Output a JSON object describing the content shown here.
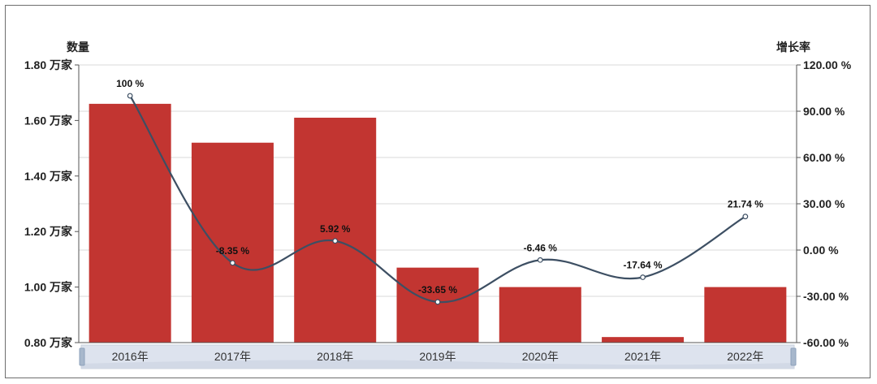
{
  "chart_data": {
    "type": "bar+line",
    "categories": [
      "2016年",
      "2017年",
      "2018年",
      "2019年",
      "2020年",
      "2021年",
      "2022年"
    ],
    "series": [
      {
        "type": "bar",
        "axis": "left",
        "values": [
          1.66,
          1.52,
          1.61,
          1.07,
          1.0,
          0.82,
          1.0
        ]
      },
      {
        "type": "line",
        "axis": "right",
        "values": [
          100,
          -8.35,
          5.92,
          -33.65,
          -6.46,
          -17.64,
          21.74
        ],
        "labels": [
          "100 %",
          "-8.35 %",
          "5.92 %",
          "-33.65 %",
          "-6.46 %",
          "-17.64 %",
          "21.74 %"
        ]
      }
    ],
    "left_axis": {
      "title": "数量",
      "ylim": [
        0.8,
        1.8
      ],
      "ticks": [
        0.8,
        1.0,
        1.2,
        1.4,
        1.6,
        1.8
      ],
      "tick_labels": [
        "0.80 万家",
        "1.00 万家",
        "1.20 万家",
        "1.40 万家",
        "1.60 万家",
        "1.80 万家"
      ]
    },
    "right_axis": {
      "title": "增长率",
      "ylim": [
        -60,
        120
      ],
      "ticks": [
        -60,
        -30,
        0,
        30,
        60,
        90,
        120
      ],
      "tick_labels": [
        "-60.00 %",
        "-30.00 %",
        "0.00 %",
        "30.00 %",
        "60.00 %",
        "90.00 %",
        "120.00 %"
      ]
    },
    "grid": true,
    "colors": {
      "bar": "#c23531",
      "line": "#3d4f63",
      "grid": "#d9d9d9",
      "axis": "#555555",
      "zoom_fill": "#dde3ee"
    }
  }
}
